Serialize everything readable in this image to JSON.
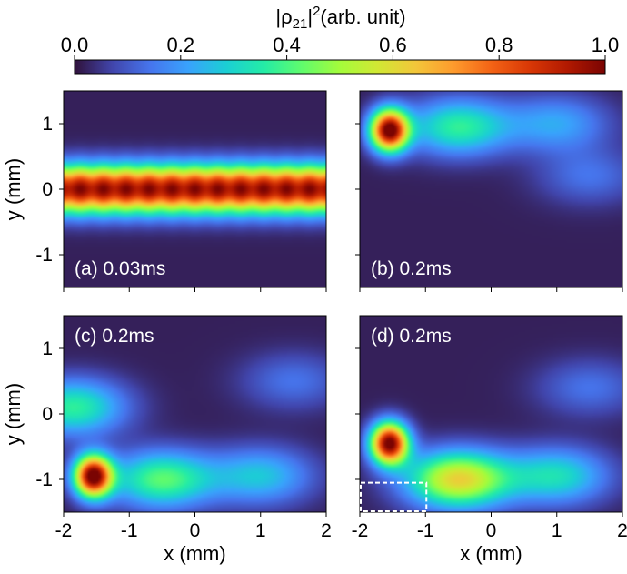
{
  "colorbar": {
    "title_prefix": "|ρ",
    "title_sub": "21",
    "title_bar": "|",
    "title_sup": "2",
    "title_suffix": "(arb. unit)",
    "tick_labels": [
      "0.0",
      "0.2",
      "0.4",
      "0.6",
      "0.8",
      "1.0"
    ],
    "range": [
      0,
      1
    ],
    "colormap": "turbo-like",
    "stops": [
      "#30123b",
      "#4145ab",
      "#4675ed",
      "#39a2fc",
      "#1bcfd4",
      "#24eca6",
      "#61fc6c",
      "#a4fc3b",
      "#d1e834",
      "#f3c63a",
      "#fe9b2d",
      "#f36315",
      "#d93806",
      "#b11901",
      "#7a0402"
    ]
  },
  "chart_data": [
    {
      "type": "heatmap",
      "panel_label": "(a) 0.03ms",
      "xlabel": "",
      "ylabel": "y (mm)",
      "xlim": [
        -2,
        2
      ],
      "ylim": [
        -1.5,
        1.5
      ],
      "xticks": [],
      "yticks": [
        "1",
        "0",
        "-1"
      ],
      "blobs": [
        {
          "x": 0,
          "y": 0,
          "value": 1.0,
          "shape": "horizontal band",
          "y_sigma": 0.25
        }
      ]
    },
    {
      "type": "heatmap",
      "panel_label": "(b) 0.2ms",
      "xlabel": "",
      "ylabel": "",
      "xlim": [
        -2,
        2
      ],
      "ylim": [
        -1.5,
        1.5
      ],
      "xticks": [],
      "yticks": [],
      "blobs": [
        {
          "x": -1.55,
          "y": 0.9,
          "value": 1.0
        },
        {
          "x": -0.5,
          "y": 0.95,
          "value": 0.35
        },
        {
          "x": 1.0,
          "y": 1.0,
          "value": 0.2
        },
        {
          "x": 1.5,
          "y": 0.2,
          "value": 0.12
        }
      ]
    },
    {
      "type": "heatmap",
      "panel_label": "(c) 0.2ms",
      "xlabel": "x (mm)",
      "ylabel": "y (mm)",
      "xlim": [
        -2,
        2
      ],
      "ylim": [
        -1.5,
        1.5
      ],
      "xticks": [
        "-2",
        "-1",
        "0",
        "1",
        "2"
      ],
      "yticks": [
        "1",
        "0",
        "-1"
      ],
      "blobs": [
        {
          "x": -1.55,
          "y": -0.95,
          "value": 1.0
        },
        {
          "x": -0.5,
          "y": -1.0,
          "value": 0.4
        },
        {
          "x": 1.0,
          "y": -0.95,
          "value": 0.25
        },
        {
          "x": -1.85,
          "y": 0.1,
          "value": 0.35
        },
        {
          "x": 1.5,
          "y": 0.5,
          "value": 0.12
        }
      ]
    },
    {
      "type": "heatmap",
      "panel_label": "(d) 0.2ms",
      "xlabel": "x (mm)",
      "ylabel": "",
      "xlim": [
        -2,
        2
      ],
      "ylim": [
        -1.5,
        1.5
      ],
      "xticks": [
        "-2",
        "-1",
        "0",
        "1",
        "2"
      ],
      "yticks": [],
      "blobs": [
        {
          "x": -1.55,
          "y": -0.45,
          "value": 1.0
        },
        {
          "x": -0.5,
          "y": -1.0,
          "value": 0.6
        },
        {
          "x": 1.0,
          "y": -0.95,
          "value": 0.3
        },
        {
          "x": 1.5,
          "y": 0.4,
          "value": 0.12
        }
      ],
      "dashed_box": {
        "x": [
          -2,
          -1
        ],
        "y": [
          -1.5,
          -1.05
        ]
      }
    }
  ]
}
